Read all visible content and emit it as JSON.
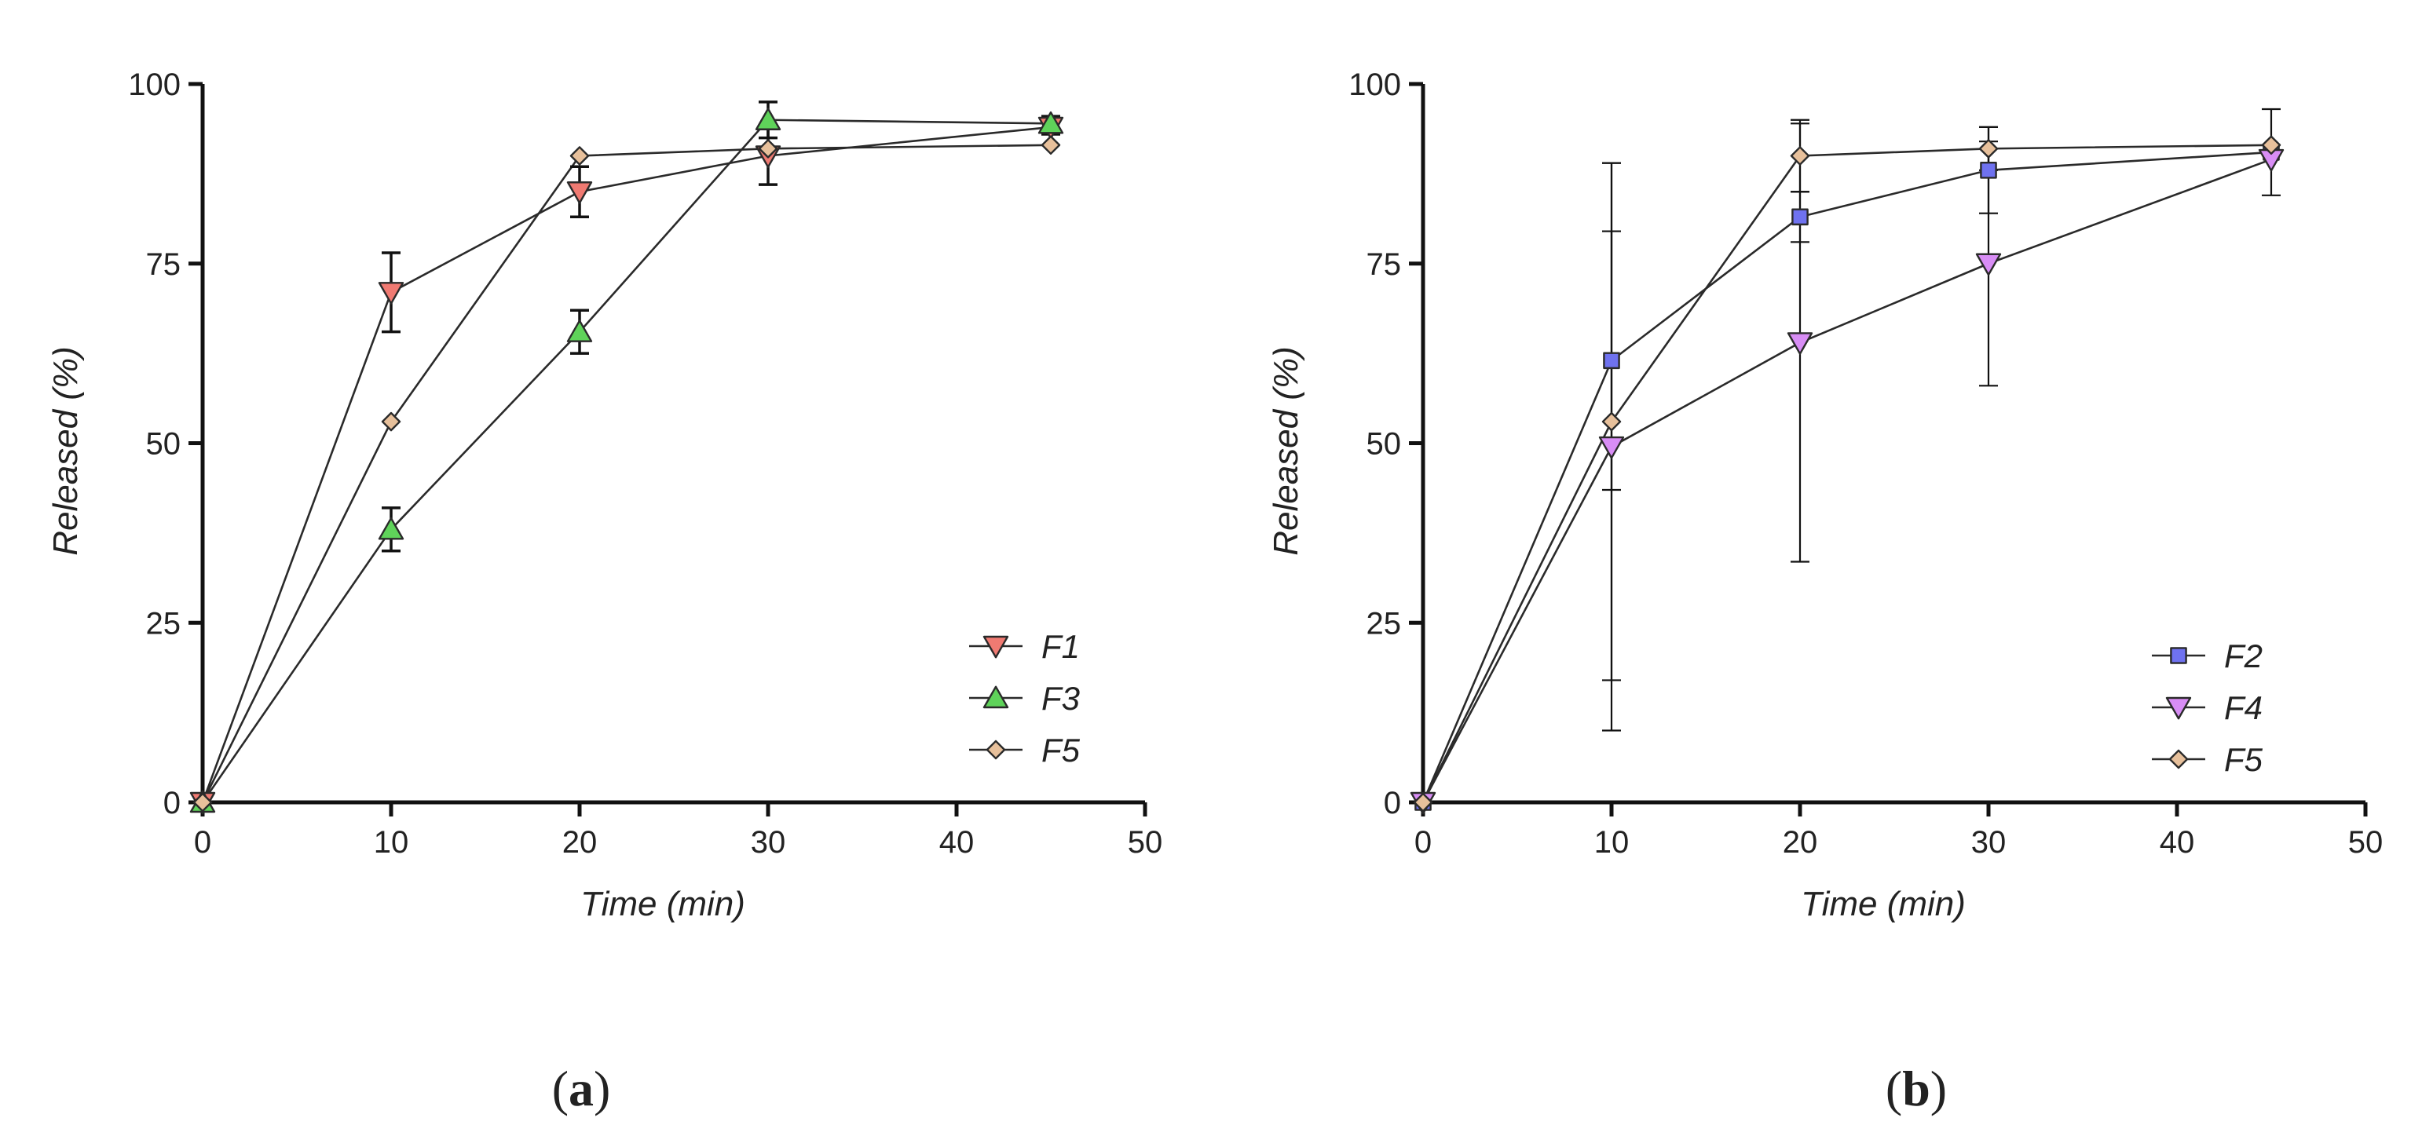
{
  "chart_data": [
    {
      "type": "line",
      "panel": "a",
      "panel_label_open": "(",
      "panel_label_letter": "a",
      "panel_label_close": ")",
      "xlabel": "Time (min)",
      "ylabel": "Released (%)",
      "xlim": [
        0,
        50
      ],
      "ylim": [
        0,
        100
      ],
      "xticks": [
        0,
        10,
        20,
        30,
        40,
        50
      ],
      "yticks": [
        0,
        25,
        50,
        75,
        100
      ],
      "legend_position": "bottom-right",
      "series": [
        {
          "name": "F1",
          "marker": "triangle-down",
          "color": "#f07a72",
          "x": [
            0,
            10,
            20,
            30,
            45
          ],
          "values": [
            0,
            71,
            85,
            90,
            94
          ],
          "error": [
            0,
            5.5,
            3.5,
            4,
            1
          ]
        },
        {
          "name": "F3",
          "marker": "triangle-up",
          "color": "#5fd35a",
          "x": [
            0,
            10,
            20,
            30,
            45
          ],
          "values": [
            0,
            38,
            65.5,
            95,
            94.5
          ],
          "error": [
            0,
            3,
            3,
            2.5,
            1
          ]
        },
        {
          "name": "F5",
          "marker": "diamond",
          "color": "#e7c09b",
          "x": [
            0,
            10,
            20,
            30,
            45
          ],
          "values": [
            0,
            53,
            90,
            91,
            91.5
          ],
          "error": [
            0,
            0,
            0,
            0,
            0
          ]
        }
      ]
    },
    {
      "type": "line",
      "panel": "b",
      "panel_label_open": "(",
      "panel_label_letter": "b",
      "panel_label_close": ")",
      "xlabel": "Time (min)",
      "ylabel": "Released (%)",
      "xlim": [
        0,
        50
      ],
      "ylim": [
        0,
        100
      ],
      "xticks": [
        0,
        10,
        20,
        30,
        40,
        50
      ],
      "yticks": [
        0,
        25,
        50,
        75,
        100
      ],
      "legend_position": "bottom-right",
      "series": [
        {
          "name": "F2",
          "marker": "square",
          "color": "#6f72f0",
          "x": [
            0,
            10,
            20,
            30,
            45
          ],
          "values": [
            0,
            61.5,
            81.5,
            88,
            90.5
          ],
          "error": [
            0,
            18,
            3.5,
            6,
            6
          ]
        },
        {
          "name": "F4",
          "marker": "triangle-down",
          "color": "#d88df5",
          "x": [
            0,
            10,
            20,
            30,
            45
          ],
          "values": [
            0,
            49.5,
            64,
            75,
            89.5
          ],
          "error": [
            0,
            39.5,
            30.5,
            17,
            0
          ]
        },
        {
          "name": "F5",
          "marker": "diamond",
          "color": "#e7c09b",
          "x": [
            0,
            10,
            20,
            30,
            45
          ],
          "values": [
            0,
            53,
            90,
            91,
            91.5
          ],
          "error": [
            0,
            36,
            5,
            3,
            0
          ]
        }
      ]
    }
  ]
}
